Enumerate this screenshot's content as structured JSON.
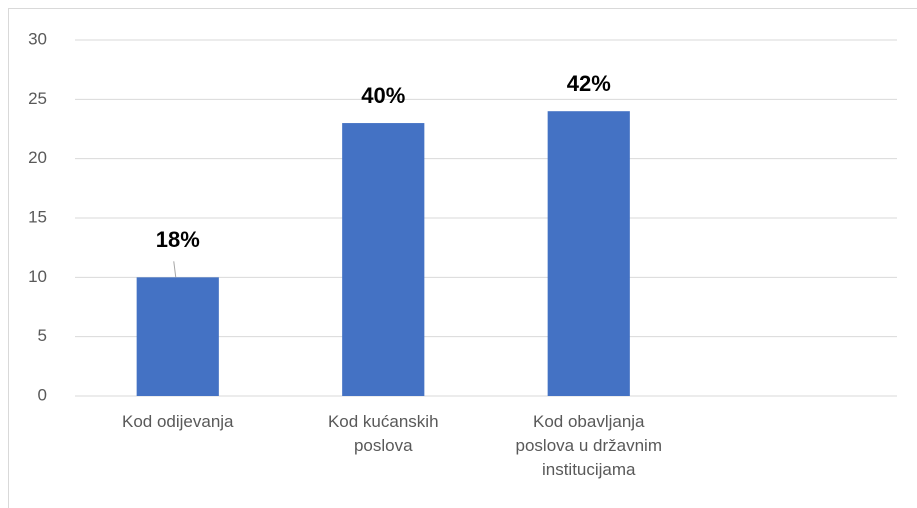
{
  "chart_data": {
    "type": "bar",
    "categories": [
      "Kod odijevanja",
      "Kod kućanskih poslova",
      "Kod obavljanja poslova u državnim institucijama"
    ],
    "values": [
      10,
      23,
      24
    ],
    "annotations": [
      "18%",
      "40%",
      "42%"
    ],
    "color": "#4472c4",
    "ylim": [
      0,
      30
    ],
    "yticks": [
      0,
      5,
      10,
      15,
      20,
      25,
      30
    ],
    "grid": true
  }
}
